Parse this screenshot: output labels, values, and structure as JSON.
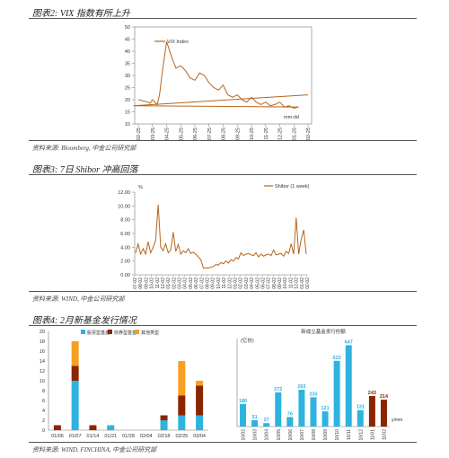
{
  "figures": [
    {
      "title": "图表2: VIX 指数有所上升",
      "source": "资料来源: Bloomberg, 中金公司研究部"
    },
    {
      "title": "图表3: 7日 Shibor 冲高回落",
      "source": "资料来源: WIND, 中金公司研究部"
    },
    {
      "title": "图表4: 2月新基金发行情况",
      "source": "资料来源: WIND, FINCHINA, 中金公司研究部"
    }
  ],
  "chart_data": [
    {
      "type": "line",
      "legend": [
        "VIX Index"
      ],
      "x_unit": "mm-dd",
      "x_ticks": [
        "02-25",
        "03-25",
        "04-25",
        "05-25",
        "06-25",
        "07-25",
        "08-25",
        "09-25",
        "10-25",
        "11-25",
        "12-25",
        "01-25",
        "02-25"
      ],
      "ylim": [
        10,
        50
      ],
      "y_ticks": [
        10,
        15,
        20,
        25,
        30,
        35,
        40,
        45,
        50
      ],
      "series": [
        {
          "name": "VIX Index",
          "color": "#b5651d",
          "x": [
            "02-25",
            "03-05",
            "03-15",
            "03-20",
            "03-25",
            "04-05",
            "04-10",
            "04-15",
            "04-25",
            "05-05",
            "05-15",
            "05-25",
            "06-05",
            "06-15",
            "06-25",
            "07-05",
            "07-15",
            "07-25",
            "08-05",
            "08-15",
            "08-25",
            "09-05",
            "09-15",
            "09-25",
            "10-05",
            "10-15",
            "10-25",
            "11-05",
            "11-15",
            "11-25",
            "12-05",
            "12-15",
            "12-25",
            "01-05",
            "01-15",
            "01-25",
            "02-05",
            "02-15",
            "02-25"
          ],
          "values": [
            20,
            19.5,
            19,
            18.5,
            20,
            18,
            22,
            30,
            44,
            38,
            33,
            34,
            32,
            29,
            28,
            31,
            30,
            27,
            25,
            24,
            26,
            22,
            21,
            22,
            20,
            19,
            21,
            19,
            18,
            19,
            17.5,
            18,
            19,
            17,
            17.5,
            16.5,
            17,
            17.5,
            22
          ]
        }
      ]
    },
    {
      "type": "line",
      "legend": [
        "Shibor (1 week)"
      ],
      "y_unit": "%",
      "x_ticks": [
        "07-02",
        "08-02",
        "09-02",
        "10-02",
        "11-02",
        "12-02",
        "01-02",
        "02-02",
        "03-02",
        "04-02",
        "05-02",
        "06-02",
        "07-02",
        "08-02",
        "09-02",
        "10-02",
        "11-02",
        "12-02",
        "01-02",
        "02-02",
        "03-02",
        "04-02",
        "05-02",
        "06-02",
        "07-02",
        "08-02",
        "09-02",
        "10-02",
        "11-02",
        "12-02",
        "01-02",
        "02-02"
      ],
      "x_labels_shown": [
        "07-02",
        "08-02",
        "09-02",
        "10-02",
        "11-02",
        "12-02",
        "01-02",
        "02-02",
        "03-02",
        "04-02",
        "05-02",
        "06-02",
        "07-02",
        "08-02",
        "09-02",
        "10-02",
        "11-02",
        "12-02",
        "01-02",
        "02-02",
        "03-02",
        "04-02",
        "05-02",
        "06-02",
        "07-02",
        "08-02",
        "09-02",
        "10-02",
        "11-02",
        "12-02",
        "01-02",
        "02-02"
      ],
      "ylim": [
        0,
        12
      ],
      "y_ticks": [
        0.0,
        2.0,
        4.0,
        6.0,
        8.0,
        10.0,
        12.0
      ],
      "series": [
        {
          "name": "Shibor (1 week)",
          "color": "#b5651d",
          "values": [
            3.2,
            4.5,
            3.0,
            3.8,
            3.0,
            4.8,
            3.2,
            4.0,
            5.0,
            10.2,
            4.0,
            3.5,
            4.5,
            3.2,
            3.6,
            6.2,
            3.4,
            4.4,
            3.0,
            3.5,
            3.2,
            3.8,
            3.1,
            3.3,
            3.0,
            2.6,
            2.2,
            1.0,
            1.0,
            1.0,
            1.1,
            1.2,
            1.5,
            1.4,
            1.8,
            1.6,
            2.0,
            1.7,
            2.2,
            2.0,
            2.5,
            2.3,
            3.2,
            2.8,
            3.0,
            3.1,
            2.9,
            2.8,
            3.2,
            2.6,
            3.0,
            2.7,
            2.9,
            3.0,
            2.8,
            3.6,
            2.9,
            3.0,
            3.1,
            2.7,
            3.4,
            3.1,
            4.5,
            3.0,
            8.3,
            3.0,
            5.2,
            6.5,
            3.0
          ]
        }
      ]
    },
    {
      "type": "bar",
      "stacked": true,
      "legend": [
        "股票型基金",
        "债券型基金",
        "其他类型"
      ],
      "x_unit": "",
      "y_unit": "",
      "categories": [
        "01/06",
        "01/07",
        "01/14",
        "01/21",
        "01/28",
        "02/04",
        "02/18",
        "02/25",
        "03/04"
      ],
      "ylim": [
        0,
        20
      ],
      "y_ticks": [
        0,
        2,
        4,
        6,
        8,
        10,
        12,
        14,
        16,
        18,
        20
      ],
      "series": [
        {
          "name": "股票型基金",
          "color": "#2eb3e0",
          "values": [
            0,
            10,
            0,
            1,
            0,
            0,
            2,
            3,
            3
          ]
        },
        {
          "name": "债券型基金",
          "color": "#8b2500",
          "values": [
            1,
            3,
            1,
            0,
            0,
            0,
            1,
            4,
            6
          ]
        },
        {
          "name": "其他类型",
          "color": "#f7a021",
          "values": [
            0,
            5,
            0,
            0,
            0,
            0,
            0,
            7,
            1
          ]
        }
      ]
    },
    {
      "type": "bar",
      "title": "新成立基金发行份额",
      "y_unit": "亿份",
      "x_unit": "y/mm",
      "categories": [
        "10/02",
        "10/03",
        "10/04",
        "10/05",
        "10/06",
        "10/07",
        "10/08",
        "10/09",
        "10/10",
        "10/11",
        "10/12",
        "11/01",
        "11/02"
      ],
      "values": [
        180,
        51,
        27,
        272,
        76,
        293,
        233,
        121,
        523,
        647,
        131,
        243,
        214
      ],
      "bar_colors": [
        "#2eb3e0",
        "#2eb3e0",
        "#2eb3e0",
        "#2eb3e0",
        "#2eb3e0",
        "#2eb3e0",
        "#2eb3e0",
        "#2eb3e0",
        "#2eb3e0",
        "#2eb3e0",
        "#2eb3e0",
        "#8b2500",
        "#8b2500"
      ],
      "ylim": [
        0,
        700
      ]
    }
  ]
}
